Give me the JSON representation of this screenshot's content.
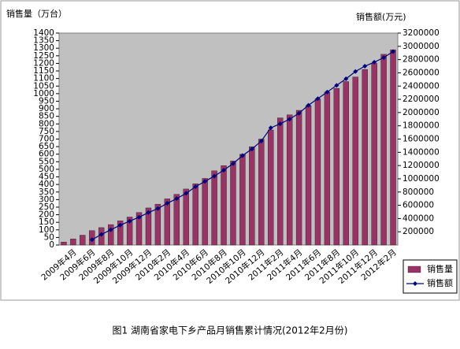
{
  "chart_data": {
    "type": "bar_line",
    "caption": "图1 湖南省家电下乡产品月销售累计情况(2012年2月份)",
    "y_label": "销售量（万台）",
    "y2_label": "销售额(万元)",
    "categories": [
      null,
      "2009年4月",
      null,
      "2009年6月",
      null,
      "2009年8月",
      null,
      "2009年10月",
      null,
      "2009年12月",
      null,
      "2010年2月",
      null,
      "2010年4月",
      null,
      "2010年6月",
      null,
      "2010年8月",
      null,
      "2010年10月",
      null,
      "2010年12月",
      null,
      "2011年2月",
      null,
      "2011年4月",
      null,
      "2011年6月",
      null,
      "2011年8月",
      null,
      "2011年10月",
      null,
      "2011年12月",
      null,
      "2012年2月"
    ],
    "series": [
      {
        "name": "销售量",
        "color": "#993366",
        "kind": "bar",
        "values": [
          20,
          40,
          65,
          95,
          115,
          135,
          160,
          185,
          215,
          245,
          270,
          305,
          335,
          370,
          405,
          440,
          490,
          525,
          555,
          600,
          650,
          700,
          760,
          840,
          860,
          890,
          920,
          965,
          1010,
          1035,
          1080,
          1110,
          1160,
          1200,
          1260,
          1290
        ]
      },
      {
        "name": "销售额",
        "color": "#000080",
        "kind": "line",
        "axis": "y2",
        "values": [
          null,
          null,
          null,
          80000,
          160000,
          230000,
          300000,
          360000,
          420000,
          490000,
          550000,
          630000,
          700000,
          780000,
          880000,
          960000,
          1040000,
          1130000,
          1230000,
          1350000,
          1450000,
          1570000,
          1770000,
          1830000,
          1900000,
          1990000,
          2110000,
          2210000,
          2310000,
          2410000,
          2510000,
          2620000,
          2700000,
          2760000,
          2830000,
          2920000
        ]
      }
    ],
    "ylim": [
      0,
      1400
    ],
    "yticks": [
      0,
      50,
      100,
      150,
      200,
      250,
      300,
      350,
      400,
      450,
      500,
      550,
      600,
      650,
      700,
      750,
      800,
      850,
      900,
      950,
      1000,
      1050,
      1100,
      1150,
      1200,
      1250,
      1300,
      1350,
      1400
    ],
    "y2lim": [
      0,
      3200000
    ],
    "y2ticks": [
      200000,
      400000,
      600000,
      800000,
      1000000,
      1200000,
      1400000,
      1600000,
      1800000,
      2000000,
      2200000,
      2400000,
      2600000,
      2800000,
      3000000,
      3200000
    ],
    "legend": "right"
  }
}
